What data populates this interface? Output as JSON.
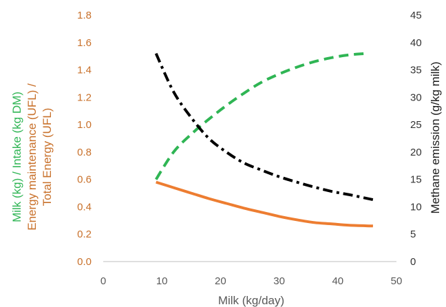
{
  "chart_data": {
    "type": "line",
    "xlabel": "Milk (kg/day)",
    "ylabel_left_lines": [
      "Milk (kg) / Intake (kg DM)",
      "Energy maintenance (UFL) /",
      "Total Energy (UFL)"
    ],
    "ylabel_right": "Methane emission (g/kg milk)",
    "xlim": [
      0,
      50
    ],
    "ylim_left": [
      0,
      1.8
    ],
    "ylim_right": [
      0,
      45
    ],
    "grid": false,
    "legend": "none",
    "x_ticks": [
      "0",
      "10",
      "20",
      "30",
      "40",
      "50"
    ],
    "y_ticks_left": [
      "0.0",
      "0.2",
      "0.4",
      "0.6",
      "0.8",
      "1.0",
      "1.2",
      "1.4",
      "1.6",
      "1.8"
    ],
    "y_ticks_right": [
      "0",
      "5",
      "10",
      "15",
      "20",
      "25",
      "30",
      "35",
      "40",
      "45"
    ],
    "colors": {
      "left_axis": "#c8702a",
      "milk_intake": "#2fb554",
      "energy": "#ed7d31",
      "methane": "#000000",
      "right_axis": "#333333"
    },
    "series": [
      {
        "axis": "left",
        "style": "dashed",
        "color": "#2fb554",
        "x": [
          9,
          12,
          15,
          18,
          21,
          24,
          27,
          30,
          33,
          36,
          39,
          42,
          45
        ],
        "y": [
          0.6,
          0.8,
          0.93,
          1.04,
          1.14,
          1.23,
          1.31,
          1.37,
          1.42,
          1.46,
          1.49,
          1.51,
          1.52
        ]
      },
      {
        "axis": "left",
        "style": "solid",
        "color": "#ed7d31",
        "x": [
          9,
          12,
          15,
          18,
          21,
          24,
          27,
          30,
          33,
          36,
          39,
          42,
          46
        ],
        "y": [
          0.58,
          0.54,
          0.5,
          0.46,
          0.425,
          0.39,
          0.36,
          0.33,
          0.305,
          0.285,
          0.275,
          0.265,
          0.26
        ]
      },
      {
        "axis": "right",
        "style": "dash-dot",
        "color": "#000000",
        "x": [
          9,
          12,
          15,
          18,
          21,
          24,
          27,
          30,
          33,
          36,
          39,
          42,
          46
        ],
        "y": [
          38,
          31,
          26.3,
          22.5,
          20,
          18,
          16.7,
          15.5,
          14.5,
          13.6,
          12.8,
          12.2,
          11.3
        ]
      }
    ]
  }
}
